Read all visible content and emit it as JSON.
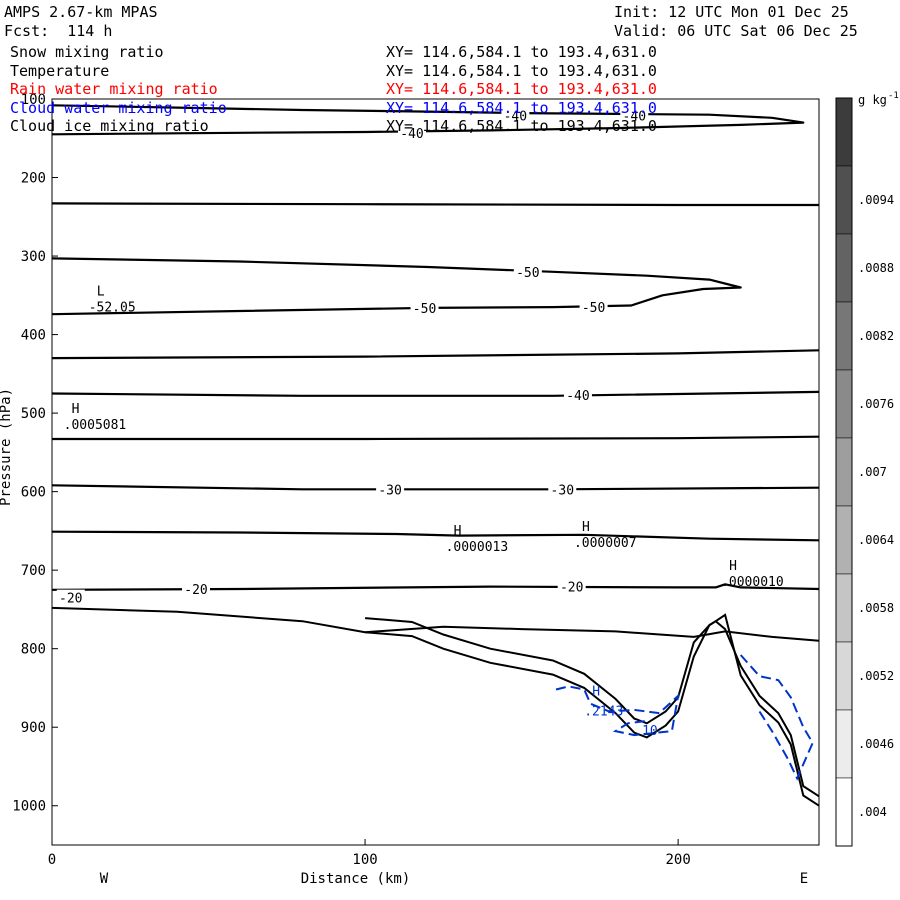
{
  "header": {
    "model": "AMPS 2.67-km MPAS",
    "init": "Init: 12 UTC Mon 01 Dec 25",
    "forecast": "Fcst:  114 h",
    "valid": "Valid: 06 UTC Sat 06 Dec 25"
  },
  "fields": [
    {
      "name": "Snow mixing ratio",
      "xy": "XY= 114.6,584.1 to 193.4,631.0",
      "color": "#000000"
    },
    {
      "name": "Temperature",
      "xy": "XY= 114.6,584.1 to 193.4,631.0",
      "color": "#000000"
    },
    {
      "name": "Rain water mixing ratio",
      "xy": "XY= 114.6,584.1 to 193.4,631.0",
      "color": "#ff0000"
    },
    {
      "name": "Cloud water mixing ratio",
      "xy": "XY= 114.6,584.1 to 193.4,631.0",
      "color": "#0000ff"
    },
    {
      "name": "Cloud ice mixing ratio",
      "xy": "XY= 114.6,584.1 to 193.4,631.0",
      "color": "#000000"
    }
  ],
  "chart_data": {
    "type": "contour-cross-section",
    "xlabel": "Distance (km)",
    "ylabel": "Pressure (hPa)",
    "xlim": [
      0,
      245
    ],
    "ylim": [
      1050,
      100
    ],
    "x_ticks": [
      0,
      100,
      200
    ],
    "y_ticks": [
      100,
      200,
      300,
      400,
      500,
      600,
      700,
      800,
      900,
      1000
    ],
    "west_label": "W",
    "east_label": "E",
    "colorbar": {
      "unit": "g kg",
      "unit_exp": "-1",
      "labels": [
        ".0094",
        ".0088",
        ".0082",
        ".0076",
        ".007",
        ".0064",
        ".0058",
        ".0052",
        ".0046",
        ".004"
      ]
    },
    "temperature_contours": [
      {
        "value": -40,
        "points": [
          [
            0,
            108
          ],
          [
            40,
            111
          ],
          [
            80,
            114
          ],
          [
            120,
            116
          ],
          [
            150,
            118
          ],
          [
            180,
            119
          ],
          [
            210,
            120
          ],
          [
            230,
            124
          ],
          [
            240,
            130
          ],
          [
            220,
            133
          ],
          [
            180,
            137
          ],
          [
            140,
            140
          ],
          [
            100,
            142
          ],
          [
            60,
            143
          ],
          [
            0,
            145
          ]
        ]
      },
      {
        "value": -40,
        "points": [
          [
            0,
            233
          ],
          [
            100,
            234
          ],
          [
            200,
            235
          ],
          [
            245,
            235
          ]
        ]
      },
      {
        "value": -50,
        "points": [
          [
            0,
            303
          ],
          [
            60,
            307
          ],
          [
            120,
            314
          ],
          [
            160,
            320
          ],
          [
            190,
            325
          ],
          [
            210,
            330
          ],
          [
            220,
            340
          ],
          [
            208,
            342
          ],
          [
            195,
            350
          ],
          [
            185,
            363
          ],
          [
            160,
            365
          ],
          [
            120,
            366
          ],
          [
            60,
            370
          ],
          [
            0,
            374
          ]
        ]
      },
      {
        "value": -40,
        "points": [
          [
            0,
            430
          ],
          [
            100,
            428
          ],
          [
            200,
            424
          ],
          [
            245,
            420
          ]
        ]
      },
      {
        "value": -40,
        "points": [
          [
            0,
            475
          ],
          [
            80,
            478
          ],
          [
            160,
            478
          ],
          [
            245,
            473
          ]
        ]
      },
      {
        "value": -30,
        "points": [
          [
            0,
            533
          ],
          [
            100,
            533
          ],
          [
            200,
            532
          ],
          [
            245,
            530
          ]
        ]
      },
      {
        "value": -30,
        "points": [
          [
            0,
            592
          ],
          [
            80,
            597
          ],
          [
            160,
            597
          ],
          [
            245,
            595
          ]
        ]
      },
      {
        "value": -20,
        "points": [
          [
            0,
            651
          ],
          [
            60,
            652
          ],
          [
            110,
            654
          ],
          [
            130,
            656
          ],
          [
            170,
            655
          ],
          [
            210,
            660
          ],
          [
            245,
            662
          ]
        ]
      },
      {
        "value": -20,
        "points": [
          [
            0,
            725
          ],
          [
            60,
            724
          ],
          [
            140,
            721
          ],
          [
            200,
            722
          ],
          [
            212,
            722
          ],
          [
            215,
            718
          ],
          [
            220,
            722
          ],
          [
            245,
            724
          ]
        ]
      }
    ],
    "terrain": [
      [
        0,
        748
      ],
      [
        40,
        753
      ],
      [
        80,
        765
      ],
      [
        100,
        779
      ],
      [
        115,
        784
      ],
      [
        125,
        800
      ],
      [
        140,
        818
      ],
      [
        160,
        833
      ],
      [
        170,
        850
      ],
      [
        180,
        882
      ],
      [
        186,
        907
      ],
      [
        190,
        913
      ],
      [
        196,
        898
      ],
      [
        200,
        880
      ],
      [
        205,
        810
      ],
      [
        210,
        770
      ],
      [
        212,
        765
      ],
      [
        215,
        775
      ],
      [
        220,
        822
      ],
      [
        226,
        860
      ],
      [
        232,
        882
      ],
      [
        236,
        910
      ],
      [
        240,
        975
      ],
      [
        245,
        988
      ]
    ],
    "cloud_water_max": {
      "label": "H",
      "value": ".2143",
      "x": 170,
      "y": 870
    },
    "cloud_water_contour_label": ".10",
    "extrema": [
      {
        "type": "L",
        "value": "-52.05",
        "x": 13,
        "y": 350
      },
      {
        "type": "H",
        "value": ".0005081",
        "x": 5,
        "y": 500
      },
      {
        "type": "H",
        "value": ".0000013",
        "x": 127,
        "y": 655
      },
      {
        "type": "H",
        "value": ".0000007",
        "x": 168,
        "y": 650
      },
      {
        "type": "H",
        "value": ".0000010",
        "x": 215,
        "y": 700
      }
    ],
    "contour_labels": [
      {
        "text": "-40",
        "x": 148,
        "y": 121
      },
      {
        "text": "-40",
        "x": 186,
        "y": 121
      },
      {
        "text": "-40",
        "x": 115,
        "y": 143
      },
      {
        "text": "-50",
        "x": 152,
        "y": 320
      },
      {
        "text": "-50",
        "x": 119,
        "y": 366
      },
      {
        "text": "-50",
        "x": 173,
        "y": 365
      },
      {
        "text": "-40",
        "x": 168,
        "y": 477
      },
      {
        "text": "-30",
        "x": 108,
        "y": 597
      },
      {
        "text": "-30",
        "x": 163,
        "y": 597
      },
      {
        "text": "-20",
        "x": 46,
        "y": 724
      },
      {
        "text": "-20",
        "x": 166,
        "y": 721
      },
      {
        "text": "-20",
        "x": 6,
        "y": 735
      }
    ]
  }
}
